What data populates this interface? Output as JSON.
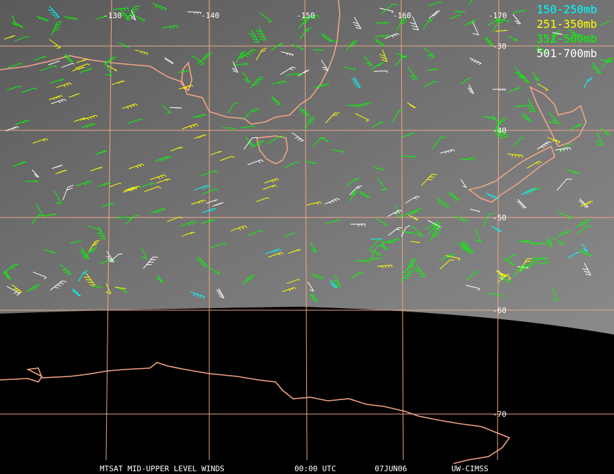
{
  "map": {
    "longitude_labels": [
      "-130",
      "-140",
      "-150",
      "-160",
      "-170"
    ],
    "latitude_labels": [
      "-30",
      "-40",
      "-50",
      "-60",
      "-70"
    ],
    "legend": [
      {
        "label": "150-250mb",
        "color": "#00ffff"
      },
      {
        "label": "251-350mb",
        "color": "#ffff00"
      },
      {
        "label": "351-500mb",
        "color": "#00ff00"
      },
      {
        "label": "501-700mb",
        "color": "#ffffff"
      }
    ],
    "footer": [
      "MTSAT MID-UPPER LEVEL WINDS",
      "00:00 UTC",
      "07JUN06",
      "UW-CIMSS"
    ]
  }
}
